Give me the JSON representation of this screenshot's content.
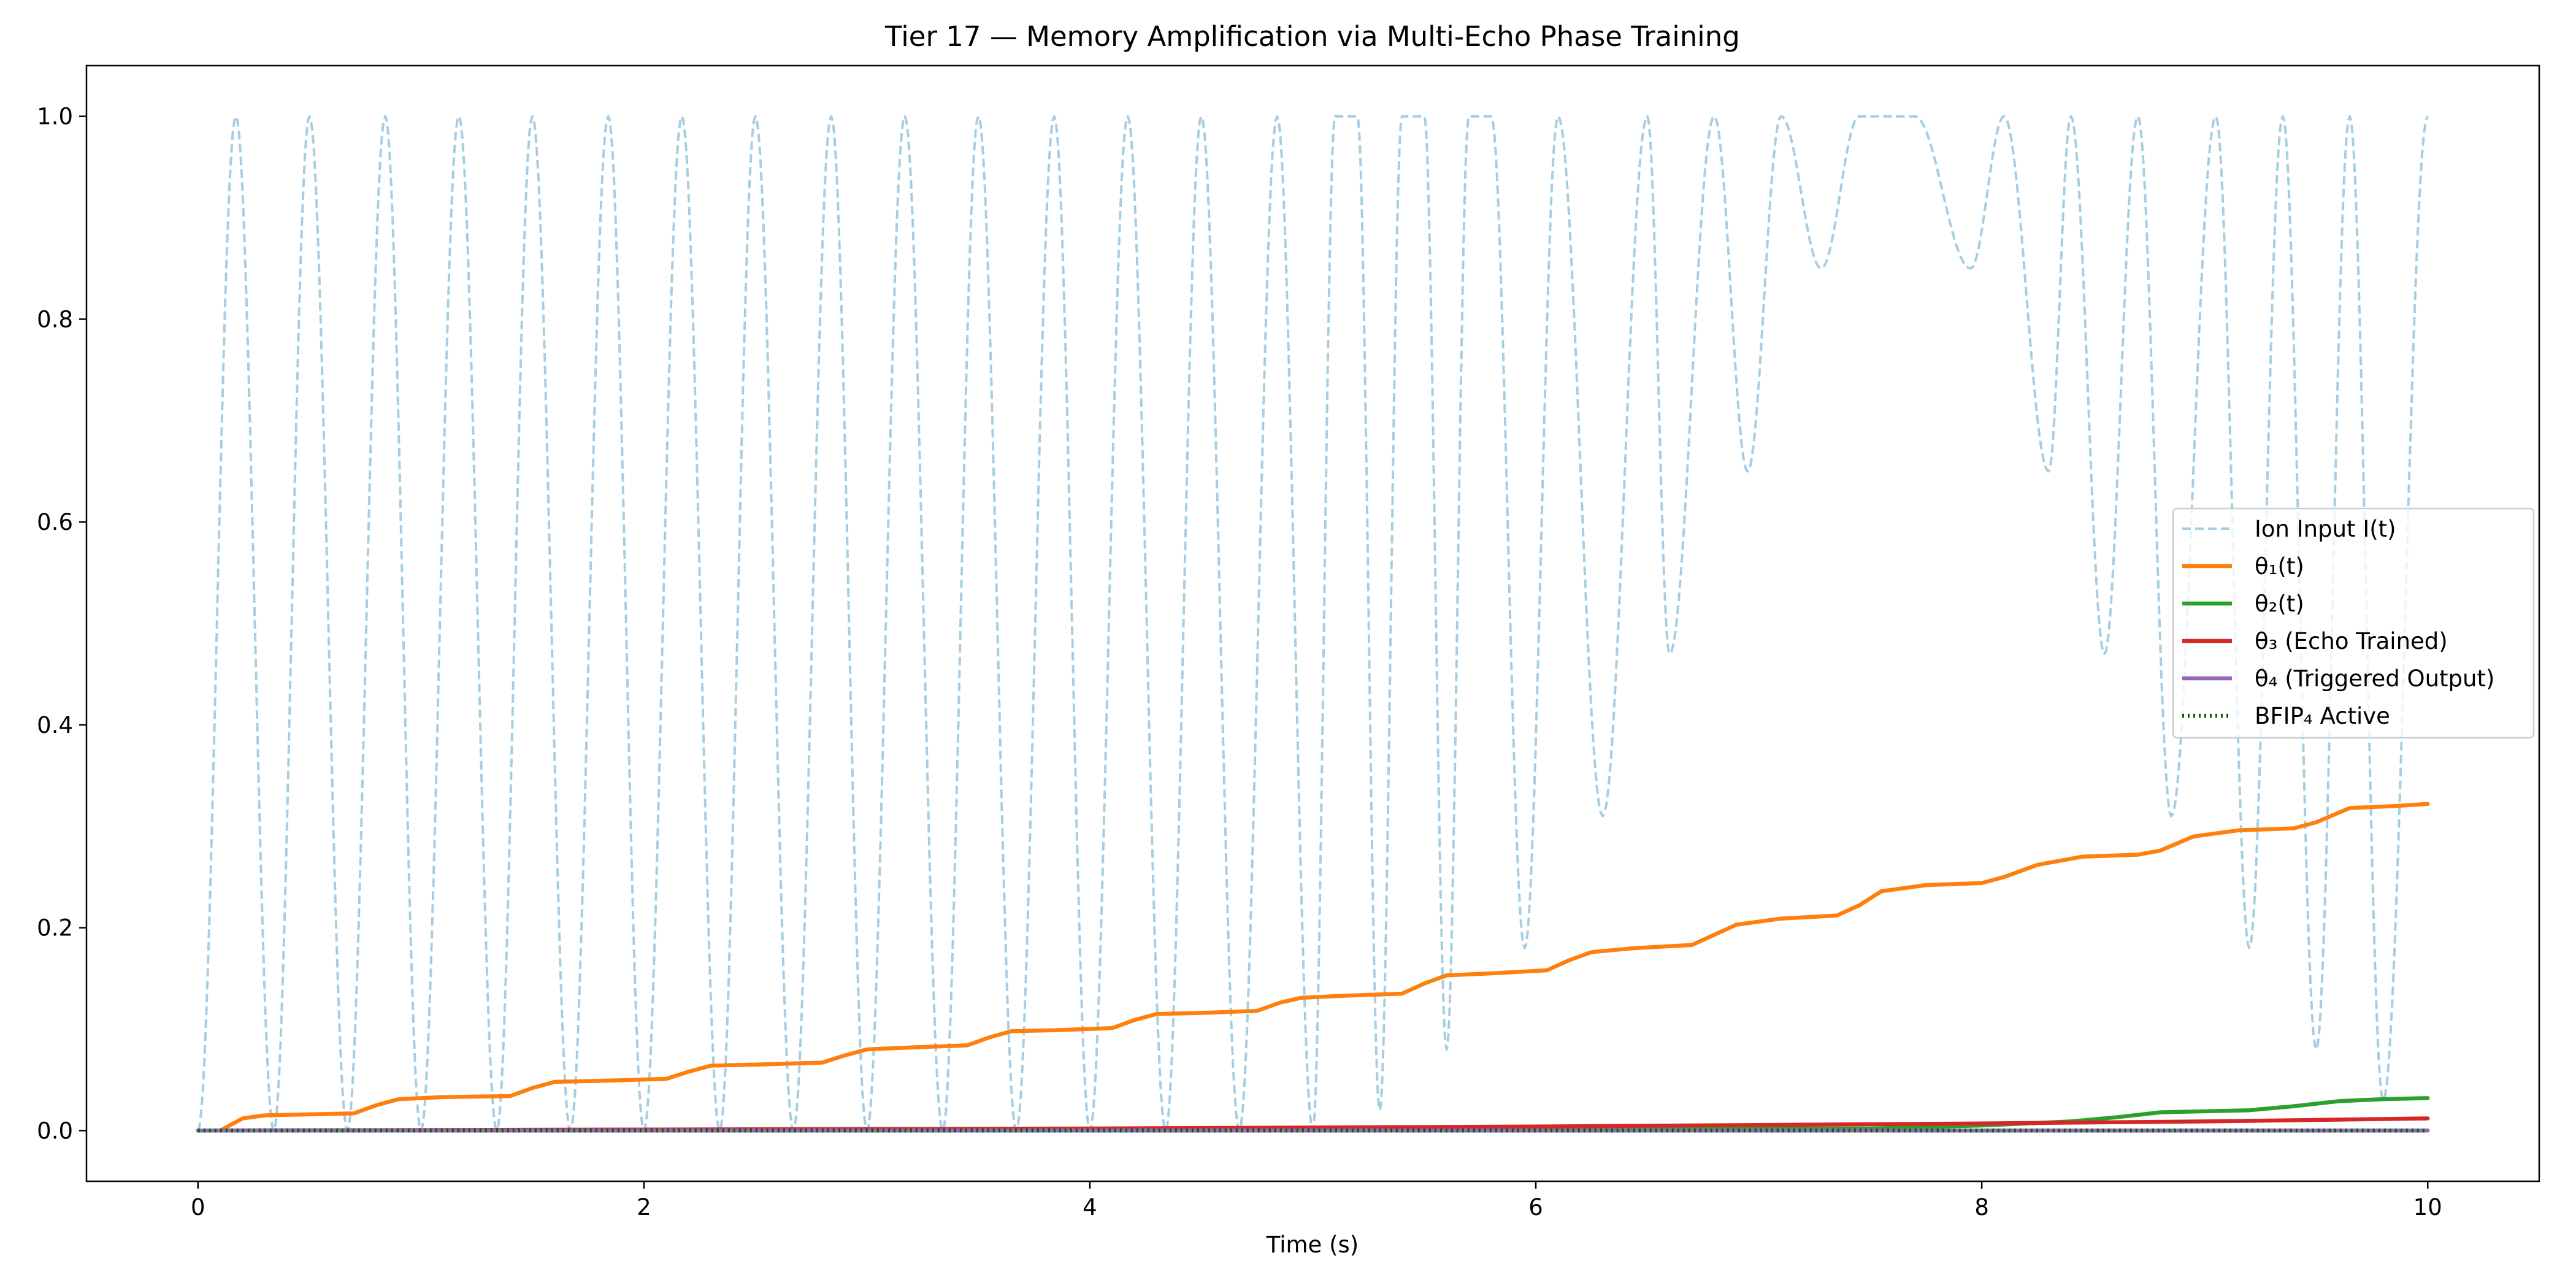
{
  "chart_data": {
    "type": "line",
    "title": "Tier 17 — Memory Amplification via Multi-Echo Phase Training",
    "xlabel": "Time (s)",
    "ylabel": "",
    "xlim": [
      -0.5,
      10.5
    ],
    "ylim": [
      -0.05,
      1.05
    ],
    "x_ticks": [
      0,
      2,
      4,
      6,
      8,
      10
    ],
    "y_ticks": [
      0.0,
      0.2,
      0.4,
      0.6,
      0.8,
      1.0
    ],
    "x_tick_labels": [
      "0",
      "2",
      "4",
      "6",
      "8",
      "10"
    ],
    "y_tick_labels": [
      "0.0",
      "0.2",
      "0.4",
      "0.6",
      "0.8",
      "1.0"
    ],
    "grid": false,
    "legend_position": "center-right",
    "series": [
      {
        "name": "Ion Input I(t)",
        "color": "#a6cee3",
        "style": "dashed",
        "x": [
          0,
          0.17,
          0.34,
          0.5,
          0.67,
          0.84,
          1.0,
          1.17,
          1.34,
          1.5,
          1.67,
          1.84,
          2.0,
          2.17,
          2.34,
          2.5,
          2.67,
          2.84,
          3.0,
          3.17,
          3.34,
          3.5,
          3.67,
          3.84,
          4.0,
          4.17,
          4.34,
          4.5,
          4.67,
          4.84,
          5.0,
          5.1,
          5.2,
          5.3,
          5.4,
          5.5,
          5.6,
          5.7,
          5.8,
          5.95,
          6.1,
          6.3,
          6.5,
          6.6,
          6.8,
          6.95,
          7.1,
          7.28,
          7.45,
          7.7,
          7.95,
          8.1,
          8.3,
          8.4,
          8.55,
          8.7,
          8.85,
          9.05,
          9.2,
          9.35,
          9.5,
          9.65,
          9.8,
          10.0
        ],
        "values": [
          0.0,
          1.0,
          0.0,
          1.0,
          0.0,
          1.0,
          0.0,
          1.0,
          0.0,
          1.0,
          0.0,
          1.0,
          0.0,
          1.0,
          0.0,
          1.0,
          0.0,
          1.0,
          0.0,
          1.0,
          0.0,
          1.0,
          0.0,
          1.0,
          0.0,
          1.0,
          0.0,
          1.0,
          0.0,
          1.0,
          0.0,
          1.0,
          1.0,
          0.02,
          1.0,
          1.0,
          0.08,
          1.0,
          1.0,
          0.18,
          1.0,
          0.31,
          1.0,
          0.47,
          1.0,
          0.65,
          1.0,
          0.85,
          1.0,
          1.0,
          0.85,
          1.0,
          0.65,
          1.0,
          0.47,
          1.0,
          0.31,
          1.0,
          0.18,
          1.0,
          0.08,
          1.0,
          0.03,
          1.0
        ]
      },
      {
        "name": "θ₁(t)",
        "color": "#ff7f0e",
        "style": "solid",
        "x": [
          0.0,
          0.1,
          0.2,
          0.3,
          0.5,
          0.7,
          0.8,
          0.9,
          1.1,
          1.4,
          1.5,
          1.6,
          1.8,
          2.1,
          2.2,
          2.3,
          2.5,
          2.8,
          2.9,
          3.0,
          3.2,
          3.45,
          3.55,
          3.65,
          3.85,
          4.1,
          4.2,
          4.3,
          4.5,
          4.75,
          4.85,
          4.95,
          5.15,
          5.4,
          5.5,
          5.6,
          5.8,
          6.05,
          6.15,
          6.25,
          6.45,
          6.7,
          6.8,
          6.9,
          7.1,
          7.35,
          7.45,
          7.55,
          7.75,
          8.0,
          8.1,
          8.25,
          8.45,
          8.7,
          8.8,
          8.95,
          9.15,
          9.4,
          9.5,
          9.65,
          9.85,
          10.0
        ],
        "values": [
          0.0,
          0.0,
          0.012,
          0.015,
          0.016,
          0.017,
          0.025,
          0.031,
          0.033,
          0.034,
          0.042,
          0.048,
          0.049,
          0.051,
          0.058,
          0.064,
          0.065,
          0.067,
          0.074,
          0.08,
          0.082,
          0.084,
          0.092,
          0.098,
          0.099,
          0.101,
          0.109,
          0.115,
          0.116,
          0.118,
          0.126,
          0.131,
          0.133,
          0.135,
          0.145,
          0.153,
          0.155,
          0.158,
          0.168,
          0.176,
          0.18,
          0.183,
          0.193,
          0.203,
          0.209,
          0.212,
          0.222,
          0.236,
          0.242,
          0.244,
          0.25,
          0.262,
          0.27,
          0.272,
          0.276,
          0.29,
          0.296,
          0.298,
          0.304,
          0.318,
          0.32,
          0.322
        ]
      },
      {
        "name": "θ₂(t)",
        "color": "#2ca02c",
        "style": "solid",
        "x": [
          0,
          7.5,
          8.0,
          8.2,
          8.4,
          8.6,
          8.8,
          9.0,
          9.2,
          9.4,
          9.6,
          9.8,
          10.0
        ],
        "values": [
          0.0,
          0.002,
          0.005,
          0.007,
          0.009,
          0.013,
          0.018,
          0.019,
          0.02,
          0.024,
          0.029,
          0.031,
          0.032
        ]
      },
      {
        "name": "θ₃ (Echo Trained)",
        "color": "#d62728",
        "style": "solid",
        "x": [
          0,
          2,
          4,
          6,
          8,
          9,
          10
        ],
        "values": [
          0.0,
          0.001,
          0.002,
          0.004,
          0.007,
          0.009,
          0.012
        ]
      },
      {
        "name": "θ₄ (Triggered Output)",
        "color": "#9467bd",
        "style": "solid",
        "x": [
          0,
          10
        ],
        "values": [
          0.0,
          0.0
        ]
      },
      {
        "name": "BFIP₄ Active",
        "color": "#006400",
        "style": "dotted",
        "x": [
          0,
          10
        ],
        "values": [
          0.0,
          0.0
        ]
      }
    ]
  }
}
